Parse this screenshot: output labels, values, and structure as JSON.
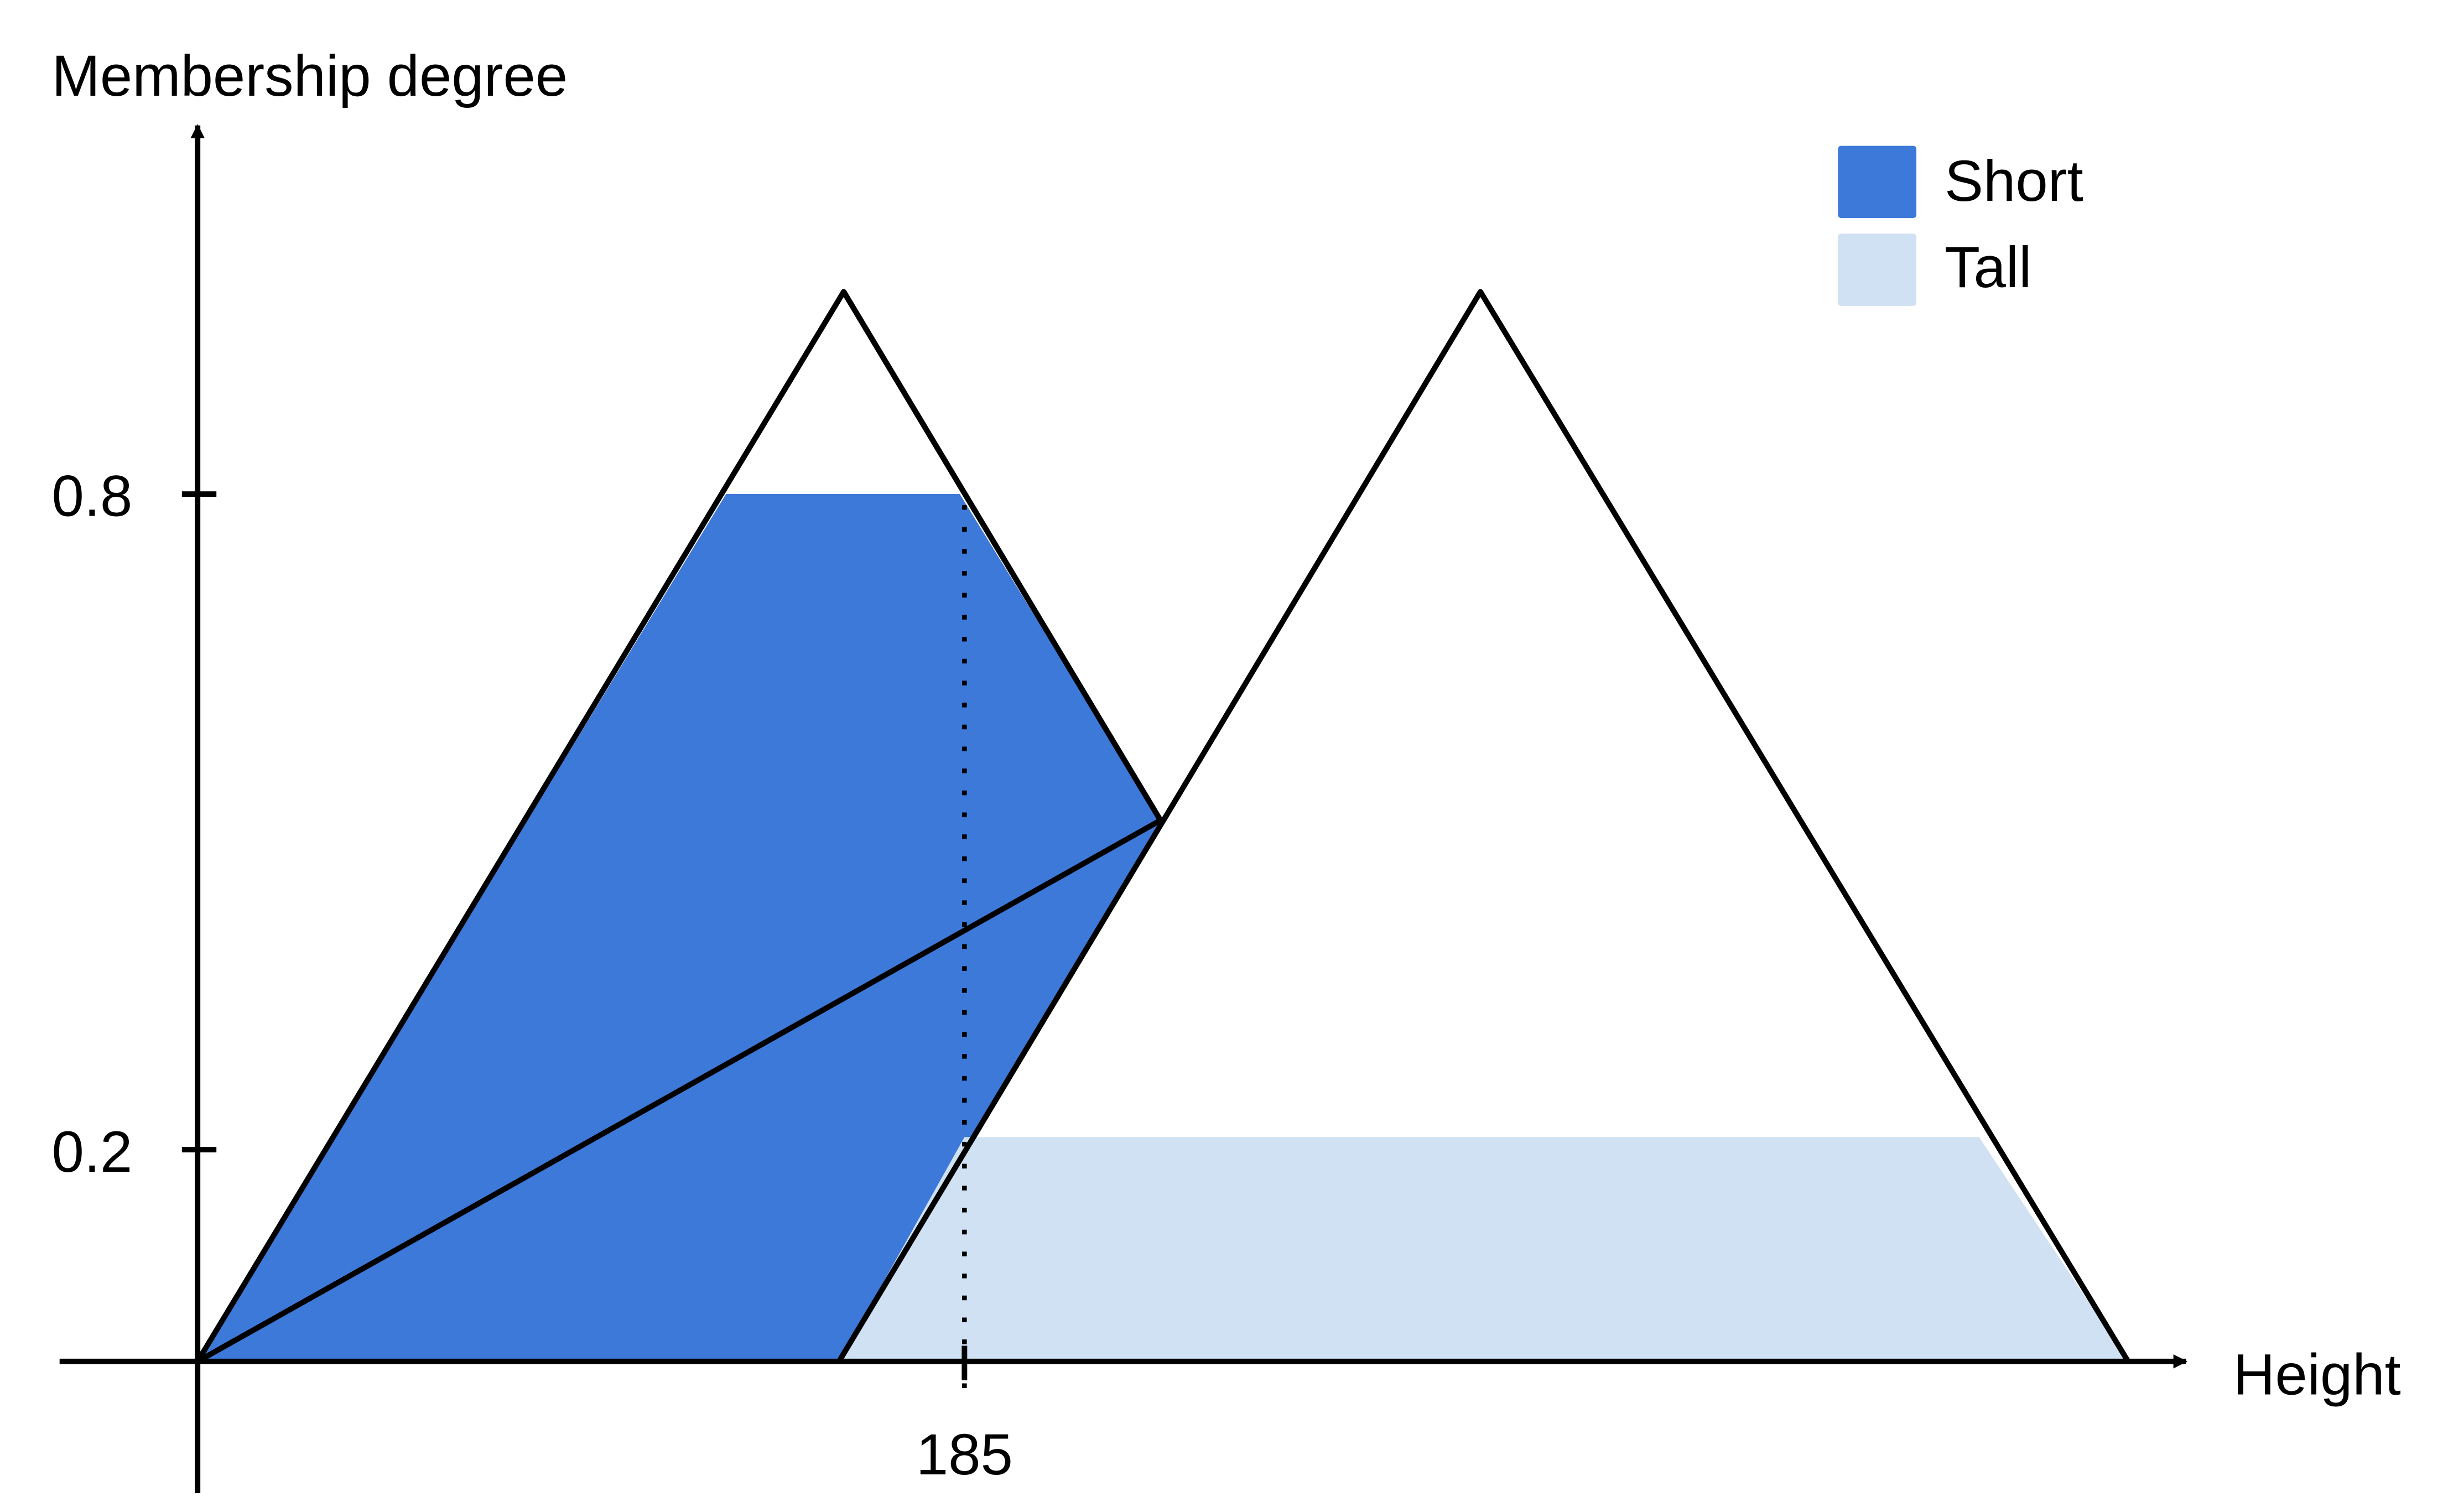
{
  "axes": {
    "y_label": "Membership degree",
    "x_label": "Height"
  },
  "ticks": {
    "y": [
      {
        "label": "0.8",
        "value": 0.8
      },
      {
        "label": "0.2",
        "value": 0.2
      }
    ],
    "x": [
      {
        "label": "185"
      }
    ]
  },
  "legend": [
    {
      "label": "Short",
      "color": "#3d79d9"
    },
    {
      "label": "Tall",
      "color": "#cfe1f2"
    }
  ],
  "sets": [
    {
      "name": "Short",
      "fill_level": 0.8,
      "color": "#3d79d9"
    },
    {
      "name": "Tall",
      "fill_level": 0.2,
      "color": "#cfe1f2"
    }
  ]
}
